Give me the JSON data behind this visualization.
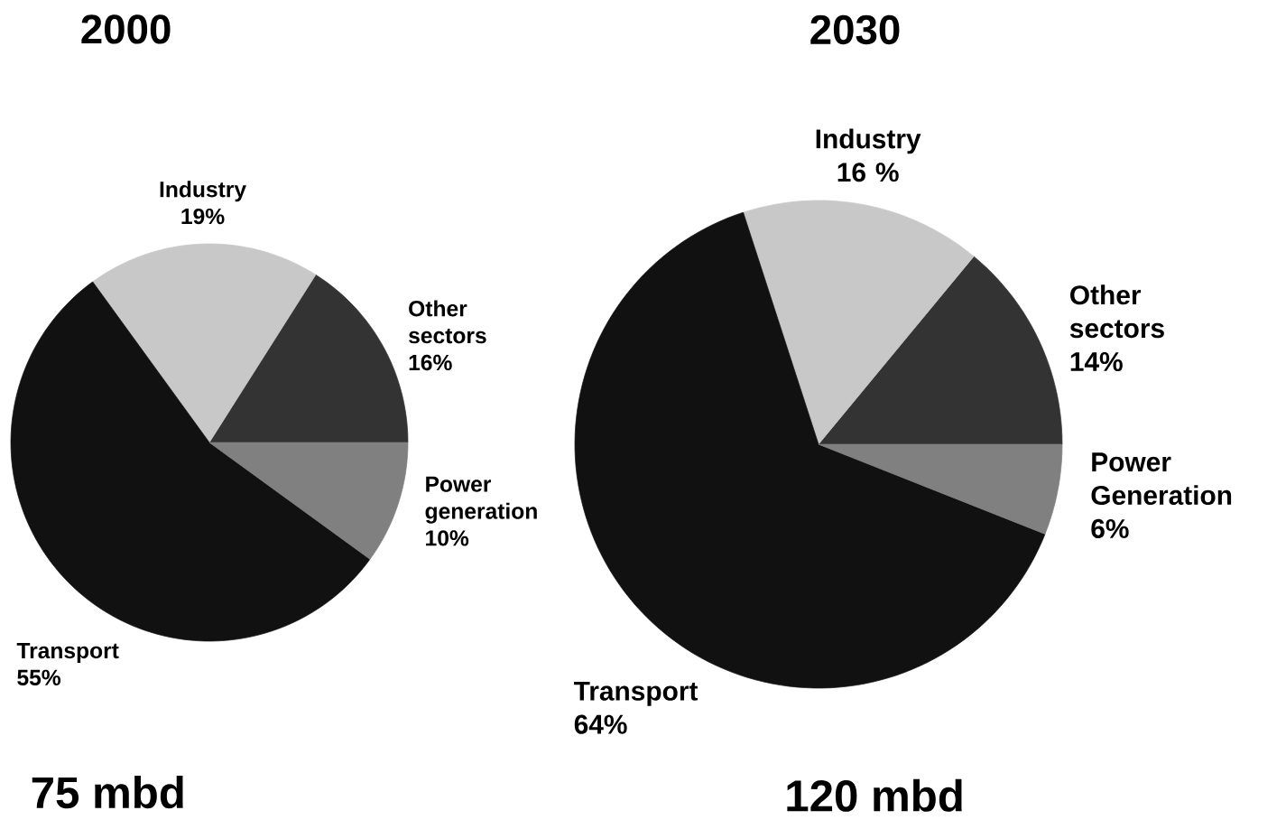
{
  "chart_data": [
    {
      "type": "pie",
      "title": "2000",
      "categories": [
        "Other sectors",
        "Industry",
        "Transport",
        "Power generation"
      ],
      "values": [
        16,
        19,
        55,
        10
      ],
      "value_labels": [
        "16%",
        "19%",
        "55%",
        "10%"
      ],
      "colors": [
        "#333333",
        "#c8c8c8",
        "#111111",
        "#808080"
      ],
      "annotations": [
        "75 mbd"
      ]
    },
    {
      "type": "pie",
      "title": "2030",
      "categories": [
        "Other sectors",
        "Industry",
        "Transport",
        "Power Generation"
      ],
      "values": [
        14,
        16,
        64,
        6
      ],
      "value_labels": [
        "14%",
        "16 %",
        "64%",
        "6%"
      ],
      "colors": [
        "#333333",
        "#c8c8c8",
        "#111111",
        "#808080"
      ],
      "annotations": [
        "120 mbd"
      ]
    }
  ]
}
